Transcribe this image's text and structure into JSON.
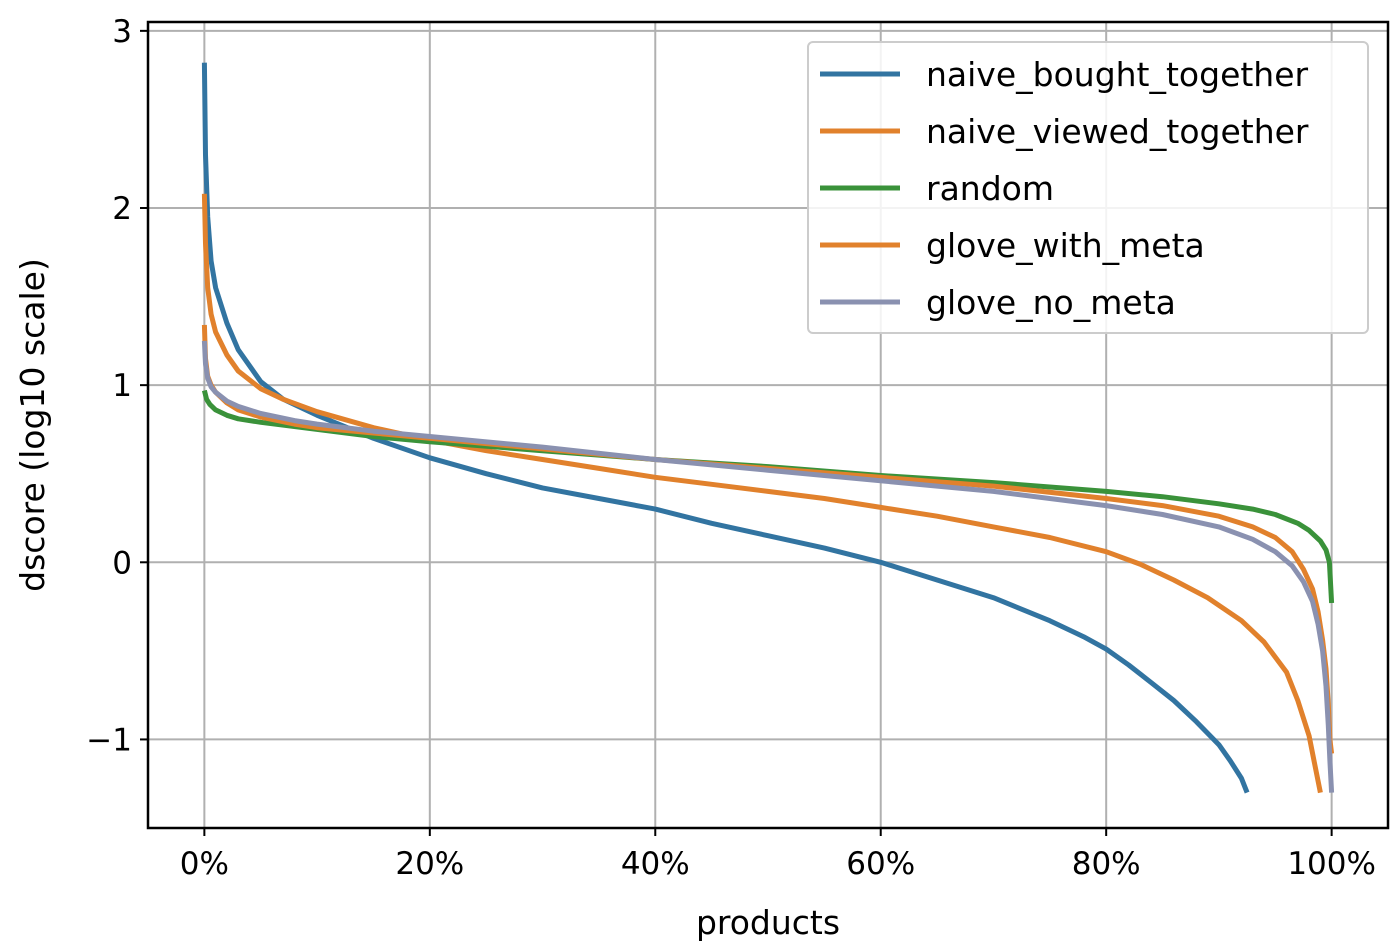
{
  "chart_data": {
    "type": "line",
    "title": "",
    "xlabel": "products",
    "ylabel": "dscore (log10 scale)",
    "xlim": [
      -5,
      105
    ],
    "ylim": [
      -1.5,
      3.05
    ],
    "x_ticks": [
      0,
      20,
      40,
      60,
      80,
      100
    ],
    "x_tick_labels": [
      "0%",
      "20%",
      "40%",
      "60%",
      "80%",
      "100%"
    ],
    "y_ticks": [
      -1,
      0,
      1,
      2,
      3
    ],
    "y_tick_labels": [
      "−1",
      "0",
      "1",
      "2",
      "3"
    ],
    "grid": true,
    "legend_position": "top-right",
    "series": [
      {
        "name": "naive_bought_together",
        "color": "#3274a1",
        "x": [
          0,
          0.1,
          0.3,
          0.6,
          1,
          2,
          3,
          5,
          7,
          10,
          15,
          20,
          25,
          30,
          35,
          40,
          45,
          50,
          55,
          60,
          65,
          70,
          75,
          78,
          80,
          82,
          84,
          86,
          88,
          90,
          91,
          92,
          92.5
        ],
        "y": [
          2.82,
          2.3,
          1.95,
          1.7,
          1.55,
          1.35,
          1.2,
          1.02,
          0.92,
          0.83,
          0.7,
          0.59,
          0.5,
          0.42,
          0.36,
          0.3,
          0.22,
          0.15,
          0.08,
          0.0,
          -0.1,
          -0.2,
          -0.33,
          -0.42,
          -0.49,
          -0.58,
          -0.68,
          -0.78,
          -0.9,
          -1.03,
          -1.12,
          -1.22,
          -1.3
        ]
      },
      {
        "name": "naive_viewed_together",
        "color": "#e1812c",
        "x": [
          0,
          0.1,
          0.3,
          0.6,
          1,
          2,
          3,
          5,
          7,
          10,
          15,
          20,
          25,
          30,
          35,
          40,
          45,
          50,
          55,
          60,
          65,
          70,
          75,
          80,
          83,
          86,
          89,
          92,
          94,
          96,
          97,
          98,
          98.5,
          99
        ],
        "y": [
          2.08,
          1.8,
          1.55,
          1.4,
          1.3,
          1.17,
          1.08,
          0.98,
          0.92,
          0.85,
          0.76,
          0.69,
          0.63,
          0.58,
          0.53,
          0.48,
          0.44,
          0.4,
          0.36,
          0.31,
          0.26,
          0.2,
          0.14,
          0.06,
          -0.01,
          -0.1,
          -0.2,
          -0.33,
          -0.45,
          -0.62,
          -0.78,
          -0.98,
          -1.14,
          -1.3
        ]
      },
      {
        "name": "random",
        "color": "#3a923a",
        "x": [
          0,
          0.2,
          0.5,
          1,
          2,
          3,
          5,
          10,
          15,
          20,
          30,
          40,
          50,
          60,
          70,
          80,
          85,
          90,
          93,
          95,
          97,
          98,
          99,
          99.5,
          99.8,
          100
        ],
        "y": [
          0.97,
          0.92,
          0.89,
          0.86,
          0.83,
          0.81,
          0.79,
          0.75,
          0.71,
          0.68,
          0.63,
          0.58,
          0.54,
          0.49,
          0.45,
          0.4,
          0.37,
          0.33,
          0.3,
          0.27,
          0.22,
          0.18,
          0.12,
          0.07,
          0.0,
          -0.23
        ]
      },
      {
        "name": "glove_with_meta",
        "color": "#e1812c",
        "x": [
          0,
          0.1,
          0.3,
          0.6,
          1,
          2,
          3,
          5,
          8,
          10,
          15,
          20,
          30,
          40,
          50,
          60,
          70,
          80,
          85,
          90,
          93,
          95,
          96.5,
          97.5,
          98.3,
          98.8,
          99.2,
          99.5,
          99.7,
          99.85,
          100
        ],
        "y": [
          1.34,
          1.15,
          1.05,
          1.0,
          0.96,
          0.9,
          0.86,
          0.82,
          0.78,
          0.76,
          0.73,
          0.7,
          0.64,
          0.58,
          0.53,
          0.48,
          0.43,
          0.36,
          0.32,
          0.26,
          0.2,
          0.14,
          0.06,
          -0.04,
          -0.15,
          -0.28,
          -0.44,
          -0.6,
          -0.8,
          -1.0,
          -1.08
        ]
      },
      {
        "name": "glove_no_meta",
        "color": "#8a91b0",
        "x": [
          0,
          0.1,
          0.3,
          0.6,
          1,
          2,
          3,
          5,
          8,
          10,
          15,
          20,
          30,
          40,
          50,
          60,
          70,
          80,
          85,
          90,
          93,
          95,
          96.5,
          97.5,
          98.3,
          98.8,
          99.2,
          99.5,
          99.7,
          99.85,
          100
        ],
        "y": [
          1.25,
          1.12,
          1.04,
          0.99,
          0.96,
          0.91,
          0.88,
          0.84,
          0.8,
          0.78,
          0.74,
          0.71,
          0.65,
          0.58,
          0.52,
          0.46,
          0.4,
          0.32,
          0.27,
          0.2,
          0.13,
          0.06,
          -0.02,
          -0.11,
          -0.22,
          -0.35,
          -0.5,
          -0.7,
          -0.92,
          -1.12,
          -1.3
        ]
      }
    ]
  }
}
